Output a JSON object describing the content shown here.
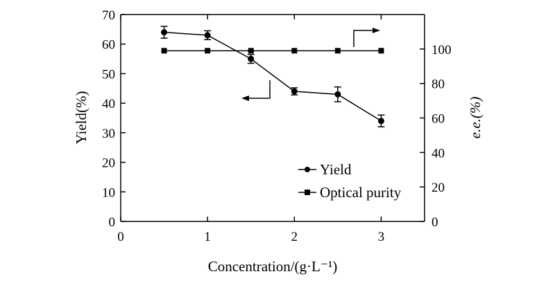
{
  "chart_data": {
    "type": "line",
    "title": "",
    "xlabel": "Concentration/(g·L⁻¹)",
    "ylabel_left": "Yield(%)",
    "ylabel_right": "e.e.(%)",
    "xlim": [
      0,
      3.5
    ],
    "ylim_left": [
      0,
      70
    ],
    "ylim_right": [
      0,
      120
    ],
    "x_ticks": [
      0,
      1,
      2,
      3
    ],
    "y_left_ticks": [
      0,
      10,
      20,
      30,
      40,
      50,
      60,
      70
    ],
    "y_right_ticks": [
      0,
      20,
      40,
      60,
      80,
      100
    ],
    "grid": false,
    "legend_position": "lower-right",
    "series": [
      {
        "name": "Yield",
        "axis": "left",
        "marker": "circle",
        "x": [
          0.5,
          1,
          1.5,
          2,
          2.5,
          3
        ],
        "y": [
          64,
          63,
          55,
          44,
          43,
          34
        ],
        "error": [
          2,
          1.5,
          1.5,
          1.2,
          2.5,
          2
        ]
      },
      {
        "name": "Optical purity",
        "axis": "right",
        "marker": "square",
        "x": [
          0.5,
          1,
          1.5,
          2,
          2.5,
          3
        ],
        "y": [
          99,
          99,
          99,
          99,
          99,
          99
        ]
      }
    ]
  }
}
